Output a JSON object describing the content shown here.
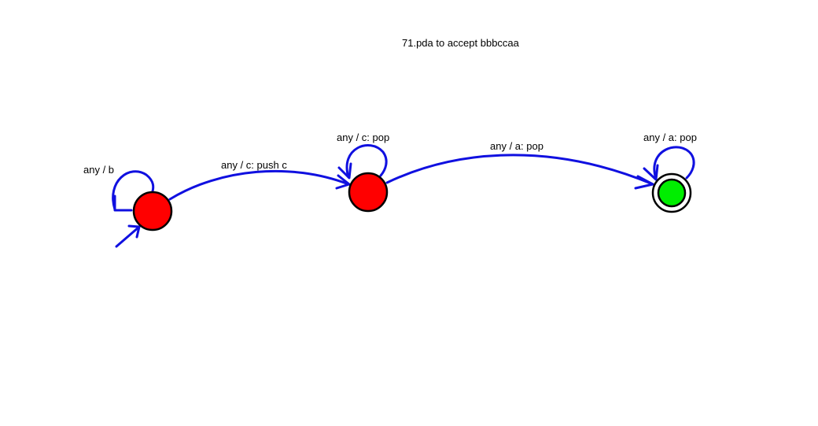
{
  "title": "71.pda to accept bbbccaa",
  "colors": {
    "edge": "#1010e0",
    "state_fill": "#ff0000",
    "final_state_fill": "#00ee00",
    "outline": "#000000",
    "background": "#ffffff"
  },
  "states": [
    {
      "id": "q0",
      "initial": true,
      "final": false
    },
    {
      "id": "q1",
      "initial": false,
      "final": false
    },
    {
      "id": "q2",
      "initial": false,
      "final": true
    }
  ],
  "transitions": [
    {
      "from": "q0",
      "to": "q0",
      "label": "any / b"
    },
    {
      "from": "q0",
      "to": "q1",
      "label": "any / c: push c"
    },
    {
      "from": "q1",
      "to": "q1",
      "label": "any / c: pop"
    },
    {
      "from": "q1",
      "to": "q2",
      "label": "any / a: pop"
    },
    {
      "from": "q2",
      "to": "q2",
      "label": "any / a: pop"
    }
  ]
}
